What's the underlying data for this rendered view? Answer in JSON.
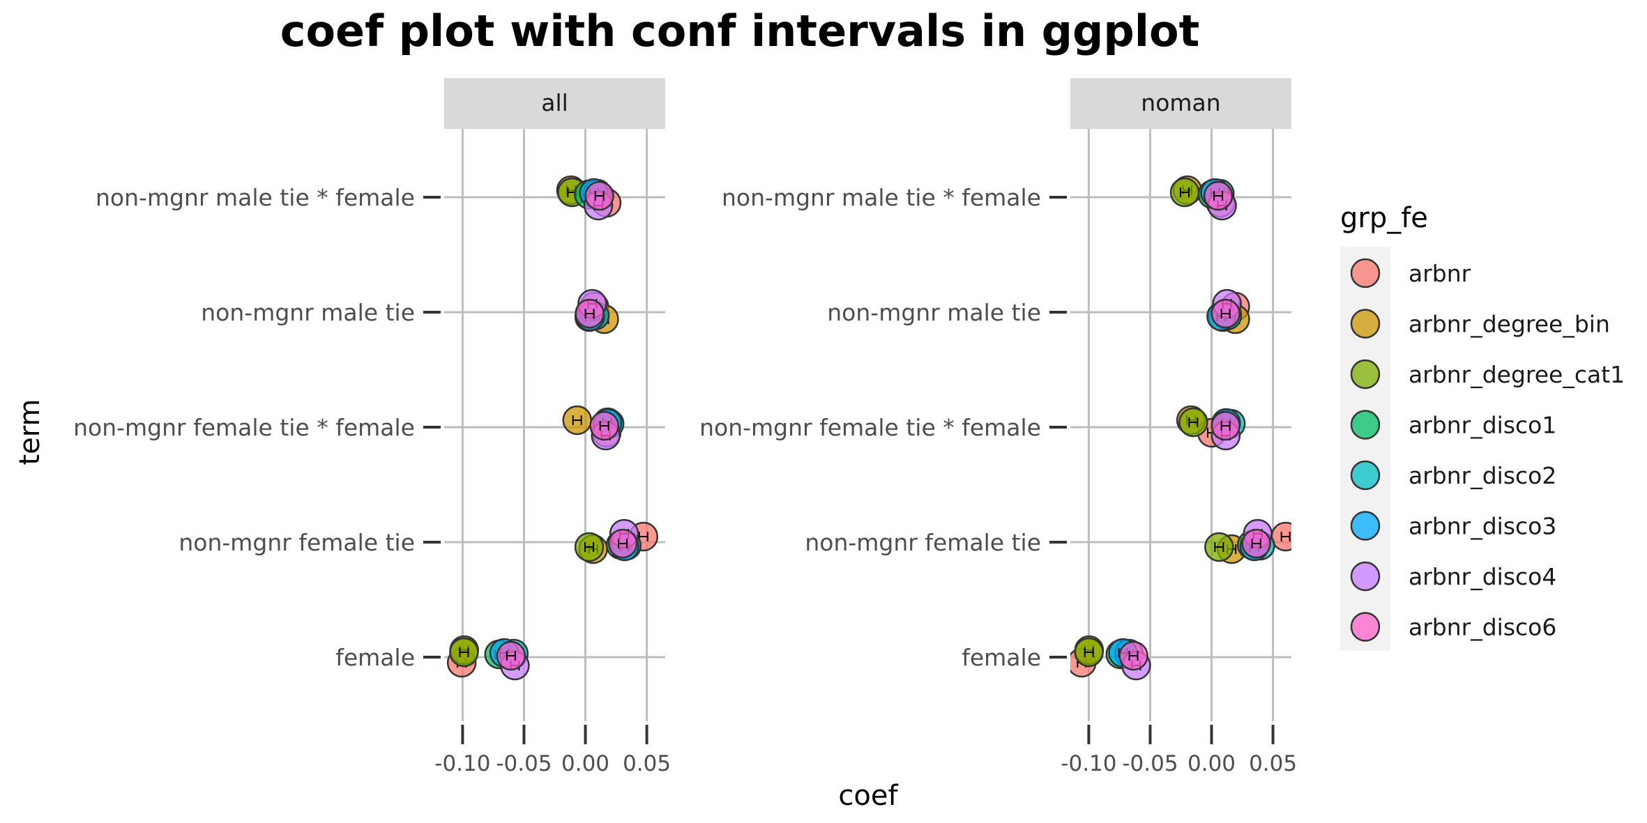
{
  "chart_data": {
    "type": "scatter",
    "title": "coef plot with conf intervals in ggplot",
    "xlabel": "coef",
    "ylabel": "term",
    "xlim": [
      -0.115,
      0.065
    ],
    "x_ticks": [
      -0.1,
      -0.05,
      0.0,
      0.05
    ],
    "x_tick_labels": [
      "-0.10",
      "-0.05",
      "0.00",
      "0.05"
    ],
    "terms": [
      "non-mgnr male tie * female",
      "non-mgnr male tie",
      "non-mgnr female tie * female",
      "non-mgnr female tie",
      "female"
    ],
    "legend_title": "grp_fe",
    "groups": [
      "arbnr",
      "arbnr_degree_bin",
      "arbnr_degree_cat1",
      "arbnr_disco1",
      "arbnr_disco2",
      "arbnr_disco3",
      "arbnr_disco4",
      "arbnr_disco6"
    ],
    "colors": [
      "#F8766D",
      "#CD9600",
      "#7CAE00",
      "#00BE67",
      "#00BFC4",
      "#00A9FF",
      "#C77CFF",
      "#FF61CC"
    ],
    "grid": true,
    "legend_position": "right",
    "panels": [
      {
        "strip": "all",
        "points": {
          "non-mgnr male tie * female": [
            0.015,
            -0.01,
            -0.012,
            0.005,
            0.008,
            0.008,
            0.01,
            0.012
          ],
          "non-mgnr male tie": [
            0.005,
            0.017,
            0.002,
            0.008,
            0.006,
            0.005,
            0.005,
            0.004
          ],
          "non-mgnr female tie * female": [
            0.015,
            -0.005,
            0.017,
            0.02,
            0.018,
            0.019,
            0.016,
            0.016
          ],
          "non-mgnr female tie": [
            0.045,
            0.008,
            0.002,
            0.031,
            0.032,
            0.033,
            0.031,
            0.031
          ],
          "female": [
            -0.103,
            -0.097,
            -0.1,
            -0.068,
            -0.06,
            -0.065,
            -0.058,
            -0.06
          ]
        }
      },
      {
        "strip": "noman",
        "points": {
          "non-mgnr male tie * female": [
            0.005,
            -0.018,
            -0.023,
            0.003,
            0.005,
            0.004,
            0.008,
            0.006
          ],
          "non-mgnr male tie": [
            0.017,
            0.021,
            0.008,
            0.015,
            0.011,
            0.009,
            0.012,
            0.012
          ],
          "non-mgnr female tie * female": [
            -0.002,
            -0.015,
            -0.016,
            0.014,
            0.014,
            0.013,
            0.011,
            0.012
          ],
          "non-mgnr female tie": [
            0.058,
            0.018,
            0.005,
            0.035,
            0.038,
            0.036,
            0.037,
            0.037
          ],
          "female": [
            -0.108,
            -0.098,
            -0.101,
            -0.072,
            -0.069,
            -0.071,
            -0.062,
            -0.063
          ]
        }
      }
    ]
  }
}
